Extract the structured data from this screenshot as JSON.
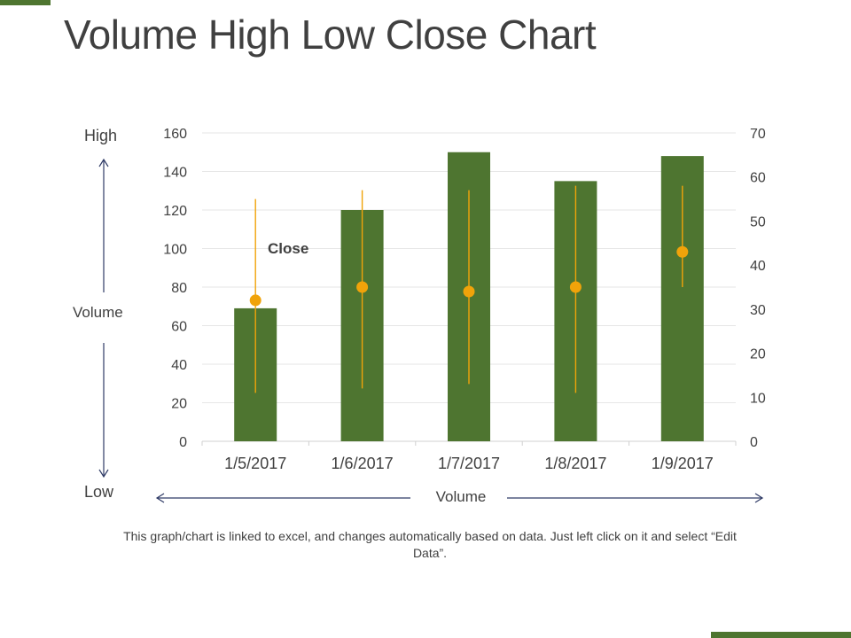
{
  "title": "Volume High Low Close Chart",
  "side_axis": {
    "high_label": "High",
    "volume_label": "Volume",
    "low_label": "Low"
  },
  "bottom_axis_label": "Volume",
  "footnote": "This graph/chart is linked to excel, and changes automatically based on data. Just left click on it and select “Edit Data”.",
  "colors": {
    "accent": "#4e7530",
    "bar": "#4e7530",
    "hlc": "#f0a30a",
    "grid": "#e6e6e6",
    "text": "#404040"
  },
  "chart_data": {
    "type": "bar",
    "categories": [
      "1/5/2017",
      "1/6/2017",
      "1/7/2017",
      "1/8/2017",
      "1/9/2017"
    ],
    "volume_axis": {
      "side": "left",
      "ylim": [
        0,
        160
      ],
      "ticks": [
        0,
        20,
        40,
        60,
        80,
        100,
        120,
        140,
        160
      ]
    },
    "price_axis": {
      "side": "right",
      "ylim": [
        0,
        70
      ],
      "ticks": [
        0,
        10,
        20,
        30,
        40,
        50,
        60,
        70
      ]
    },
    "volume": [
      69,
      120,
      150,
      135,
      148
    ],
    "high": [
      55,
      57,
      57,
      58,
      58
    ],
    "low": [
      11,
      12,
      13,
      11,
      35
    ],
    "close": [
      32,
      35,
      34,
      35,
      43
    ],
    "annotation": "Close",
    "grid": true
  }
}
